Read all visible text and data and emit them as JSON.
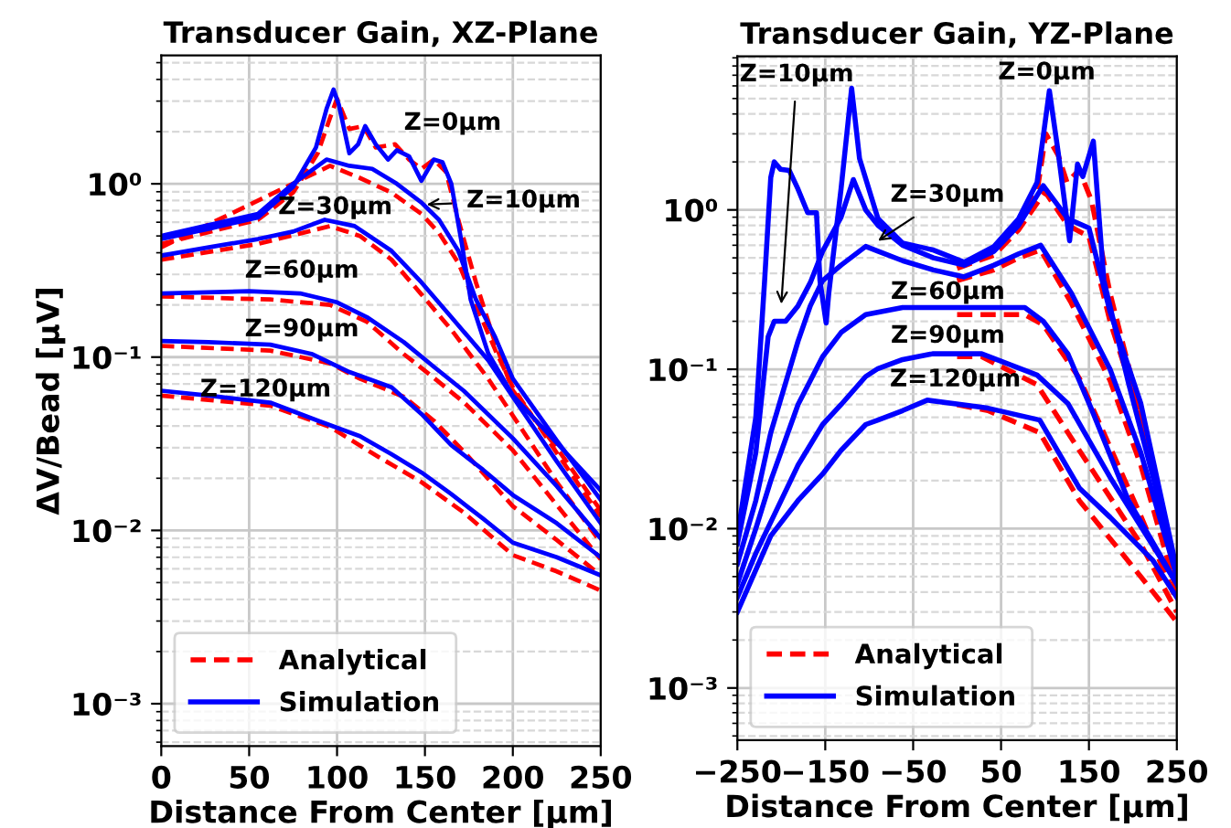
{
  "chart_data": [
    {
      "type": "line",
      "title": "Transducer Gain, XZ-Plane",
      "xlabel": "Distance From Center [µm]",
      "ylabel": "ΔV/Bead [µV]",
      "log": "y",
      "grid": true,
      "legend": "bottom left",
      "xlim": [
        0,
        250
      ],
      "xticks": [
        0,
        50,
        100,
        150,
        200,
        250
      ],
      "ylim": [
        0.00057,
        5.5
      ],
      "yticks": [
        {
          "value": 0.001,
          "label": "10⁻³"
        },
        {
          "value": 0.01,
          "label": "10⁻²"
        },
        {
          "value": 0.1,
          "label": "10⁻¹"
        },
        {
          "value": 1,
          "label": "10⁰"
        }
      ],
      "series": [
        {
          "name": "Analytical",
          "color": "#ff0000",
          "line_style": "dashed",
          "x": [
            0,
            55,
            75,
            89,
            96,
            100,
            107,
            115,
            122,
            133,
            141,
            148,
            155,
            162,
            169,
            179,
            190,
            200,
            225,
            250
          ],
          "values": [
            0.45,
            0.62,
            0.89,
            1.5,
            2.4,
            3.1,
            2.07,
            2.15,
            1.62,
            1.69,
            1.38,
            1.22,
            1.38,
            1.17,
            0.62,
            0.27,
            0.12,
            0.064,
            0.03,
            0.013
          ]
        },
        {
          "color": "#ff0000",
          "line_style": "dashed",
          "x": [
            0,
            96,
            113,
            131,
            148,
            158,
            169,
            179,
            190,
            200,
            225,
            250
          ],
          "values": [
            0.43,
            1.27,
            1.08,
            0.89,
            0.67,
            0.52,
            0.35,
            0.2,
            0.11,
            0.067,
            0.028,
            0.012
          ]
        },
        {
          "color": "#ff0000",
          "line_style": "dashed",
          "x": [
            0,
            55,
            96,
            113,
            131,
            148,
            165,
            186,
            200,
            225,
            250
          ],
          "values": [
            0.365,
            0.45,
            0.57,
            0.5,
            0.365,
            0.23,
            0.144,
            0.075,
            0.046,
            0.019,
            0.0085
          ]
        },
        {
          "color": "#ff0000",
          "line_style": "dashed",
          "x": [
            0,
            62,
            96,
            117,
            138,
            155,
            172,
            200,
            225,
            250
          ],
          "values": [
            0.224,
            0.215,
            0.2,
            0.16,
            0.104,
            0.076,
            0.055,
            0.029,
            0.014,
            0.0068
          ]
        },
        {
          "color": "#ff0000",
          "line_style": "dashed",
          "x": [
            0,
            62,
            96,
            113,
            138,
            155,
            172,
            200,
            225,
            250
          ],
          "values": [
            0.116,
            0.109,
            0.092,
            0.075,
            0.059,
            0.043,
            0.0286,
            0.0138,
            0.0088,
            0.0055
          ]
        },
        {
          "color": "#ff0000",
          "line_style": "dashed",
          "x": [
            0,
            62,
            96,
            124,
            148,
            172,
            200,
            225,
            250
          ],
          "values": [
            0.06,
            0.0525,
            0.0395,
            0.0264,
            0.019,
            0.0127,
            0.0072,
            0.0058,
            0.0045
          ]
        },
        {
          "name": "Simulation",
          "color": "#0000ff",
          "line_style": "solid",
          "x": [
            0,
            27,
            55,
            75,
            88,
            94,
            98,
            101,
            107,
            112,
            116,
            122,
            129,
            134,
            141,
            148,
            155,
            160,
            165,
            171,
            176,
            186,
            200,
            225,
            250
          ],
          "values": [
            0.48,
            0.55,
            0.64,
            0.96,
            1.62,
            2.7,
            3.5,
            2.86,
            1.5,
            1.69,
            2.15,
            1.69,
            1.38,
            1.56,
            1.44,
            1.04,
            1.38,
            1.33,
            1.0,
            0.45,
            0.215,
            0.105,
            0.06,
            0.032,
            0.017
          ]
        },
        {
          "color": "#0000ff",
          "line_style": "solid",
          "x": [
            0,
            55,
            75,
            94,
            107,
            120,
            134,
            148,
            158,
            169,
            179,
            190,
            200,
            225,
            250
          ],
          "values": [
            0.5,
            0.67,
            1.0,
            1.38,
            1.27,
            1.22,
            1.0,
            0.78,
            0.62,
            0.41,
            0.215,
            0.13,
            0.075,
            0.033,
            0.015
          ]
        },
        {
          "color": "#0000ff",
          "line_style": "solid",
          "x": [
            0,
            27,
            55,
            75,
            93,
            110,
            131,
            148,
            165,
            186,
            200,
            225,
            250
          ],
          "values": [
            0.385,
            0.43,
            0.48,
            0.53,
            0.62,
            0.57,
            0.41,
            0.27,
            0.17,
            0.096,
            0.059,
            0.025,
            0.011
          ]
        },
        {
          "color": "#0000ff",
          "line_style": "solid",
          "x": [
            0,
            50,
            79,
            100,
            117,
            138,
            155,
            172,
            200,
            225,
            250
          ],
          "values": [
            0.233,
            0.24,
            0.233,
            0.207,
            0.17,
            0.122,
            0.088,
            0.064,
            0.034,
            0.018,
            0.009
          ]
        },
        {
          "color": "#0000ff",
          "line_style": "solid",
          "x": [
            0,
            27,
            62,
            86,
            107,
            131,
            148,
            165,
            183,
            200,
            225,
            250
          ],
          "values": [
            0.124,
            0.122,
            0.118,
            0.104,
            0.082,
            0.067,
            0.047,
            0.031,
            0.0224,
            0.016,
            0.011,
            0.007
          ]
        },
        {
          "color": "#0000ff",
          "line_style": "solid",
          "x": [
            0,
            27,
            62,
            89,
            113,
            131,
            148,
            165,
            183,
            200,
            225,
            250
          ],
          "values": [
            0.064,
            0.06,
            0.0546,
            0.043,
            0.035,
            0.0275,
            0.0216,
            0.0162,
            0.0117,
            0.0085,
            0.007,
            0.0055
          ]
        }
      ],
      "annotations": [
        "Z=0µm",
        {
          "text": "Z=10µm",
          "x": 151,
          "y": 0.76
        },
        "Z=30µm",
        "Z=60µm",
        "Z=90µm",
        "Z=120µm"
      ]
    },
    {
      "type": "line",
      "title": "Transducer Gain, YZ-Plane",
      "xlabel": "Distance From Center [µm]",
      "log": "y",
      "grid": true,
      "legend": "bottom left",
      "xlim": [
        -250,
        250
      ],
      "xticks": [
        {
          "value": -250,
          "label": "−250"
        },
        {
          "value": -150,
          "label": "−150"
        },
        {
          "value": -50,
          "label": "−50"
        },
        50,
        150,
        250
      ],
      "ylim": [
        0.00047,
        9.2
      ],
      "yticks": [
        {
          "value": 0.001,
          "label": "10⁻³"
        },
        {
          "value": 0.01,
          "label": "10⁻²"
        },
        {
          "value": 0.1,
          "label": "10⁻¹"
        },
        {
          "value": 1,
          "label": "10⁰"
        }
      ],
      "series": [
        {
          "name": "Analytical",
          "color": "#ff0000",
          "line_style": "dashed",
          "x": [
            0,
            42,
            70,
            91,
            101,
            115,
            125,
            139,
            153,
            174,
            209,
            250
          ],
          "values": [
            0.44,
            0.55,
            0.8,
            1.3,
            3.0,
            2.2,
            1.49,
            1.78,
            1.14,
            0.3,
            0.052,
            0.0045
          ]
        },
        {
          "color": "#ff0000",
          "line_style": "dashed",
          "x": [
            0,
            42,
            70,
            100,
            126,
            150,
            174,
            209,
            250
          ],
          "values": [
            0.43,
            0.52,
            0.75,
            1.3,
            0.8,
            0.68,
            0.2,
            0.05,
            0.0045
          ]
        },
        {
          "color": "#ff0000",
          "line_style": "dashed",
          "x": [
            0,
            42,
            70,
            95,
            130,
            174,
            209,
            250
          ],
          "values": [
            0.36,
            0.42,
            0.5,
            0.56,
            0.26,
            0.085,
            0.025,
            0.004
          ]
        },
        {
          "color": "#ff0000",
          "line_style": "dashed",
          "x": [
            0,
            77,
            98,
            139,
            209,
            250
          ],
          "values": [
            0.22,
            0.22,
            0.19,
            0.088,
            0.012,
            0.0035
          ]
        },
        {
          "color": "#ff0000",
          "line_style": "dashed",
          "x": [
            0,
            28,
            91,
            139,
            209,
            250
          ],
          "values": [
            0.12,
            0.12,
            0.08,
            0.031,
            0.008,
            0.003
          ]
        },
        {
          "color": "#ff0000",
          "line_style": "dashed",
          "x": [
            0,
            35,
            94,
            139,
            209,
            250
          ],
          "values": [
            0.06,
            0.055,
            0.04,
            0.015,
            0.005,
            0.0026
          ]
        },
        {
          "name": "Simulation",
          "color": "#0000ff",
          "line_style": "solid",
          "x": [
            -250,
            -229,
            -219,
            -212,
            -208,
            -201,
            -191,
            -181,
            -170,
            -160,
            -156,
            -149,
            -146,
            -132,
            -120,
            -111,
            -90,
            -62,
            -27,
            8,
            42,
            70,
            91,
            105,
            115,
            128,
            137,
            143,
            155,
            167,
            195,
            223,
            250
          ],
          "values": [
            0.009,
            0.05,
            0.36,
            1.6,
            2.0,
            1.8,
            1.77,
            1.35,
            0.96,
            0.96,
            0.36,
            0.195,
            0.3,
            1.36,
            5.8,
            2.1,
            0.88,
            0.62,
            0.56,
            0.47,
            0.59,
            0.88,
            1.49,
            5.6,
            2.3,
            0.64,
            1.94,
            1.62,
            2.7,
            0.36,
            0.082,
            0.021,
            0.0055
          ]
        },
        {
          "color": "#0000ff",
          "line_style": "solid",
          "x": [
            -250,
            -229,
            -215,
            -208,
            -195,
            -181,
            -167,
            -153,
            -132,
            -118,
            -104,
            -90,
            -62,
            -27,
            8,
            42,
            70,
            98,
            126,
            150,
            174,
            209,
            250
          ],
          "values": [
            0.008,
            0.03,
            0.16,
            0.2,
            0.2,
            0.25,
            0.35,
            0.55,
            0.9,
            1.55,
            1.0,
            0.8,
            0.6,
            0.5,
            0.45,
            0.55,
            0.8,
            1.42,
            0.88,
            0.77,
            0.23,
            0.061,
            0.0055
          ]
        },
        {
          "color": "#0000ff",
          "line_style": "solid",
          "x": [
            -250,
            -229,
            -212,
            -181,
            -167,
            -153,
            -132,
            -104,
            -90,
            -62,
            -27,
            8,
            42,
            70,
            95,
            130,
            174,
            209,
            250
          ],
          "values": [
            0.006,
            0.015,
            0.04,
            0.15,
            0.25,
            0.36,
            0.45,
            0.59,
            0.55,
            0.48,
            0.42,
            0.38,
            0.45,
            0.53,
            0.6,
            0.3,
            0.1,
            0.03,
            0.005
          ]
        },
        {
          "color": "#0000ff",
          "line_style": "solid",
          "x": [
            -250,
            -229,
            -212,
            -181,
            -153,
            -132,
            -104,
            -62,
            0,
            77,
            98,
            126,
            153,
            195,
            250
          ],
          "values": [
            0.0045,
            0.01,
            0.02,
            0.06,
            0.12,
            0.17,
            0.22,
            0.244,
            0.244,
            0.244,
            0.2,
            0.125,
            0.056,
            0.015,
            0.0045
          ]
        },
        {
          "color": "#0000ff",
          "line_style": "solid",
          "x": [
            -250,
            -229,
            -181,
            -153,
            -132,
            -104,
            -90,
            -62,
            -28,
            28,
            91,
            126,
            174,
            250
          ],
          "values": [
            0.0037,
            0.007,
            0.025,
            0.045,
            0.06,
            0.09,
            0.101,
            0.115,
            0.125,
            0.125,
            0.092,
            0.061,
            0.021,
            0.0045
          ]
        },
        {
          "color": "#0000ff",
          "line_style": "solid",
          "x": [
            -250,
            -212,
            -181,
            -153,
            -132,
            -104,
            -90,
            -62,
            -34,
            35,
            94,
            139,
            174,
            223,
            250
          ],
          "values": [
            0.003,
            0.009,
            0.015,
            0.022,
            0.031,
            0.045,
            0.048,
            0.055,
            0.064,
            0.057,
            0.048,
            0.018,
            0.0118,
            0.0063,
            0.0037
          ]
        }
      ],
      "annotations": [
        "Z=10µm",
        "Z=0µm",
        {
          "text": "Z=30µm",
          "x": -90,
          "y": 0.64
        },
        "Z=60µm",
        "Z=90µm",
        "Z=120µm"
      ]
    }
  ]
}
